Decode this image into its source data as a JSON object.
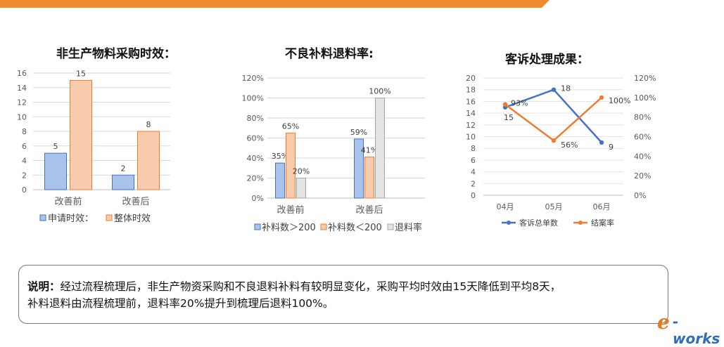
{
  "chart_data": [
    {
      "type": "bar",
      "title": "非生产物料采购时效：",
      "categories": [
        "改善前",
        "改善后"
      ],
      "series": [
        {
          "name": "申请时效：",
          "values": [
            5,
            2
          ],
          "color": "#a9c4ec",
          "stroke": "#4472c4"
        },
        {
          "name": "整体时效",
          "values": [
            15,
            8
          ],
          "color": "#f8cbad",
          "stroke": "#ed7d31"
        }
      ],
      "ylim": [
        0,
        16
      ],
      "yticks": [
        0,
        2,
        4,
        6,
        8,
        10,
        12,
        14,
        16
      ],
      "data_labels": [
        "5",
        "15",
        "2",
        "8"
      ],
      "grid": true,
      "legend": "bottom"
    },
    {
      "type": "bar",
      "title": "不良补料退料率:",
      "categories": [
        "改善前",
        "改善后"
      ],
      "series": [
        {
          "name": "补料数＞200",
          "values": [
            35,
            59
          ],
          "color": "#a9c4ec",
          "stroke": "#4472c4"
        },
        {
          "name": "补料数＜200",
          "values": [
            65,
            41
          ],
          "color": "#f8cbad",
          "stroke": "#ed7d31"
        },
        {
          "name": "退料率",
          "values": [
            20,
            100
          ],
          "color": "#e4e4e4",
          "stroke": "#a5a5a5"
        }
      ],
      "ylim": [
        0,
        120
      ],
      "ytick_labels": [
        "0%",
        "20%",
        "40%",
        "60%",
        "80%",
        "100%",
        "120%"
      ],
      "data_labels": [
        "35%",
        "65%",
        "20%",
        "59%",
        "41%",
        "100%"
      ],
      "grid": true,
      "legend": "bottom"
    },
    {
      "type": "line",
      "title": "客诉处理成果：",
      "categories": [
        "04月",
        "05月",
        "06月"
      ],
      "series": [
        {
          "name": "客诉总单数",
          "values": [
            15,
            18,
            9
          ],
          "axis": "left",
          "color": "#4472c4"
        },
        {
          "name": "结案率",
          "values": [
            93,
            56,
            100
          ],
          "axis": "right",
          "color": "#ed7d31"
        }
      ],
      "ylim_left": [
        0,
        20
      ],
      "yticks_left": [
        "0",
        "2",
        "4",
        "6",
        "8",
        "10",
        "12",
        "14",
        "16",
        "18",
        "20"
      ],
      "ylim_right": [
        0,
        120
      ],
      "yticks_right": [
        "0%",
        "20%",
        "40%",
        "60%",
        "80%",
        "100%",
        "120%"
      ],
      "data_labels": [
        "15",
        "18",
        "9",
        "93%",
        "56%",
        "100%"
      ],
      "grid": true,
      "legend": "bottom"
    }
  ],
  "note": {
    "label": "说明：",
    "line1": "经过流程梳理后，非生产物资采购和不良退料补料有较明显变化，采购平均时效由15天降低到平均8天，",
    "line2": "补料退料由流程梳理前，退料率20%提升到梳理后退料100%。"
  },
  "logo": {
    "e": "e",
    "rest": "-works"
  }
}
